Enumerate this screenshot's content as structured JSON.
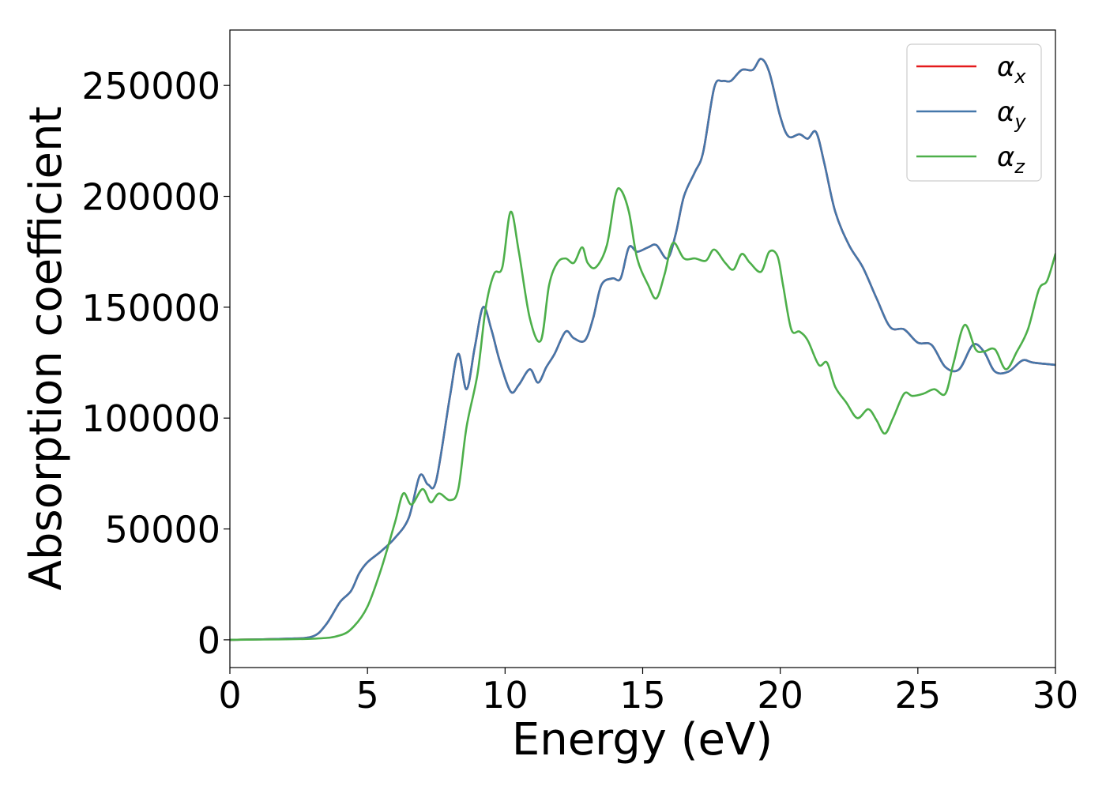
{
  "chart_data": {
    "type": "line",
    "xlabel": "Energy (eV)",
    "ylabel": "Absorption coefficient",
    "xlim": [
      0,
      30
    ],
    "ylim": [
      -12500,
      275000
    ],
    "xticks": [
      0,
      5,
      10,
      15,
      20,
      25,
      30
    ],
    "yticks": [
      0,
      50000,
      100000,
      150000,
      200000,
      250000
    ],
    "legend_position": "top-right",
    "grid": false,
    "series": [
      {
        "name": "α_x",
        "symbol": "α",
        "sub": "x",
        "color": "#e41a1c",
        "x": [
          0,
          2,
          3,
          3.5,
          4,
          4.4,
          4.7,
          5,
          5.5,
          6,
          6.5,
          6.9,
          7.2,
          7.5,
          8,
          8.3,
          8.6,
          8.9,
          9.2,
          9.5,
          9.8,
          10.2,
          10.5,
          10.9,
          11.2,
          11.5,
          11.8,
          12.2,
          12.5,
          12.9,
          13.2,
          13.5,
          13.9,
          14.2,
          14.5,
          14.8,
          15.2,
          15.5,
          15.9,
          16.2,
          16.5,
          16.9,
          17.2,
          17.6,
          17.9,
          18.2,
          18.6,
          19.0,
          19.3,
          19.6,
          20.0,
          20.3,
          20.7,
          21.0,
          21.3,
          21.6,
          22.0,
          22.5,
          23.0,
          23.5,
          24.0,
          24.5,
          25.0,
          25.5,
          26.0,
          26.5,
          27.0,
          27.4,
          27.8,
          28.3,
          28.8,
          29.2,
          30.0
        ],
        "y": [
          0,
          500,
          1500,
          7000,
          17000,
          22000,
          30000,
          35000,
          40000,
          46000,
          55000,
          74000,
          70000,
          72000,
          110000,
          129000,
          113000,
          132000,
          150000,
          140000,
          126000,
          112000,
          115000,
          122000,
          116000,
          123000,
          129000,
          139000,
          136000,
          135000,
          145000,
          160000,
          163000,
          163000,
          177000,
          175000,
          177000,
          178000,
          172000,
          183000,
          200000,
          211000,
          220000,
          249000,
          252000,
          252000,
          257000,
          257000,
          262000,
          256000,
          236000,
          227000,
          228000,
          226000,
          229000,
          215000,
          193000,
          178000,
          168000,
          154000,
          141000,
          140000,
          134000,
          133000,
          123000,
          122000,
          133000,
          130000,
          121000,
          121000,
          126000,
          125000,
          124000
        ]
      },
      {
        "name": "α_y",
        "symbol": "α",
        "sub": "y",
        "color": "#4477aa",
        "x": [
          0,
          2,
          3,
          3.5,
          4,
          4.4,
          4.7,
          5,
          5.5,
          6,
          6.5,
          6.9,
          7.2,
          7.5,
          8,
          8.3,
          8.6,
          8.9,
          9.2,
          9.5,
          9.8,
          10.2,
          10.5,
          10.9,
          11.2,
          11.5,
          11.8,
          12.2,
          12.5,
          12.9,
          13.2,
          13.5,
          13.9,
          14.2,
          14.5,
          14.8,
          15.2,
          15.5,
          15.9,
          16.2,
          16.5,
          16.9,
          17.2,
          17.6,
          17.9,
          18.2,
          18.6,
          19.0,
          19.3,
          19.6,
          20.0,
          20.3,
          20.7,
          21.0,
          21.3,
          21.6,
          22.0,
          22.5,
          23.0,
          23.5,
          24.0,
          24.5,
          25.0,
          25.5,
          26.0,
          26.5,
          27.0,
          27.4,
          27.8,
          28.3,
          28.8,
          29.2,
          30.0
        ],
        "y": [
          0,
          500,
          1500,
          7000,
          17000,
          22000,
          30000,
          35000,
          40000,
          46000,
          55000,
          74000,
          70000,
          72000,
          110000,
          129000,
          113000,
          132000,
          150000,
          140000,
          126000,
          112000,
          115000,
          122000,
          116000,
          123000,
          129000,
          139000,
          136000,
          135000,
          145000,
          160000,
          163000,
          163000,
          177000,
          175000,
          177000,
          178000,
          172000,
          183000,
          200000,
          211000,
          220000,
          249000,
          252000,
          252000,
          257000,
          257000,
          262000,
          256000,
          236000,
          227000,
          228000,
          226000,
          229000,
          215000,
          193000,
          178000,
          168000,
          154000,
          141000,
          140000,
          134000,
          133000,
          123000,
          122000,
          133000,
          130000,
          121000,
          121000,
          126000,
          125000,
          124000
        ]
      },
      {
        "name": "α_z",
        "symbol": "α",
        "sub": "z",
        "color": "#4daf4a",
        "x": [
          0,
          3,
          4,
          4.5,
          5,
          5.5,
          6,
          6.3,
          6.6,
          7,
          7.3,
          7.6,
          8,
          8.3,
          8.6,
          9,
          9.3,
          9.6,
          9.9,
          10.2,
          10.5,
          10.9,
          11.3,
          11.6,
          11.9,
          12.2,
          12.5,
          12.8,
          13.0,
          13.3,
          13.7,
          14.0,
          14.2,
          14.5,
          14.8,
          15.2,
          15.5,
          15.8,
          16.1,
          16.5,
          16.9,
          17.3,
          17.6,
          18.0,
          18.3,
          18.6,
          18.9,
          19.3,
          19.6,
          19.9,
          20.1,
          20.4,
          20.7,
          21.0,
          21.4,
          21.7,
          22.0,
          22.4,
          22.8,
          23.2,
          23.5,
          23.8,
          24.1,
          24.5,
          24.8,
          25.2,
          25.6,
          26.0,
          26.3,
          26.7,
          27.1,
          27.4,
          27.8,
          28.2,
          28.6,
          29.0,
          29.4,
          29.7,
          30.0
        ],
        "y": [
          0,
          500,
          2000,
          6000,
          15000,
          32000,
          53000,
          66000,
          61000,
          68000,
          62000,
          66000,
          63000,
          68000,
          96000,
          120000,
          150000,
          165000,
          168000,
          193000,
          175000,
          145000,
          135000,
          160000,
          170000,
          172000,
          170000,
          177000,
          170000,
          168000,
          178000,
          200000,
          203000,
          193000,
          172000,
          160000,
          154000,
          165000,
          179000,
          172000,
          172000,
          171000,
          176000,
          170000,
          167000,
          174000,
          170000,
          166000,
          175000,
          173000,
          160000,
          140000,
          139000,
          135000,
          124000,
          125000,
          114000,
          107000,
          100000,
          104000,
          99000,
          93000,
          100000,
          111000,
          110000,
          111000,
          113000,
          111000,
          125000,
          142000,
          131000,
          130000,
          131000,
          122000,
          130000,
          140000,
          158000,
          162000,
          174000
        ]
      }
    ]
  }
}
